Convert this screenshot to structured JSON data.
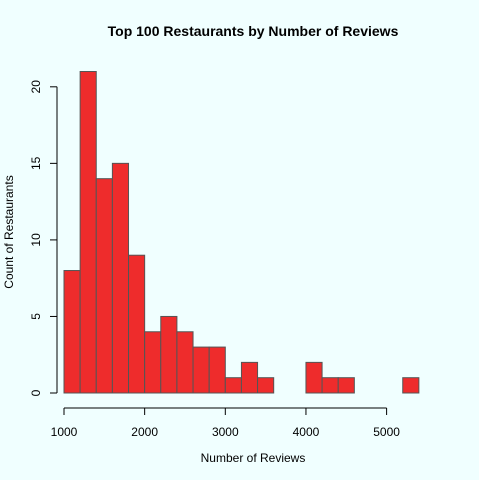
{
  "chart_data": {
    "type": "bar",
    "title": "Top 100 Restaurants by Number of Reviews",
    "xlabel": "Number of Reviews",
    "ylabel": "Count of Restaurants",
    "bin_width": 200,
    "bin_edges_start": 1000,
    "values": [
      8,
      21,
      14,
      15,
      9,
      4,
      5,
      4,
      3,
      3,
      1,
      2,
      1,
      0,
      0,
      2,
      1,
      1,
      0,
      0,
      0,
      1
    ],
    "xlim": [
      1000,
      5600
    ],
    "ylim": [
      0,
      21
    ],
    "x_ticks": [
      1000,
      2000,
      3000,
      4000,
      5000
    ],
    "y_ticks": [
      0,
      5,
      10,
      15,
      20
    ],
    "x_tick_labels": [
      "1000",
      "2000",
      "3000",
      "4000",
      "5000"
    ],
    "y_tick_labels": [
      "0",
      "5",
      "10",
      "15",
      "20"
    ],
    "bar_color": "#ee2c2c",
    "background": "#f0ffff",
    "grid": false
  }
}
